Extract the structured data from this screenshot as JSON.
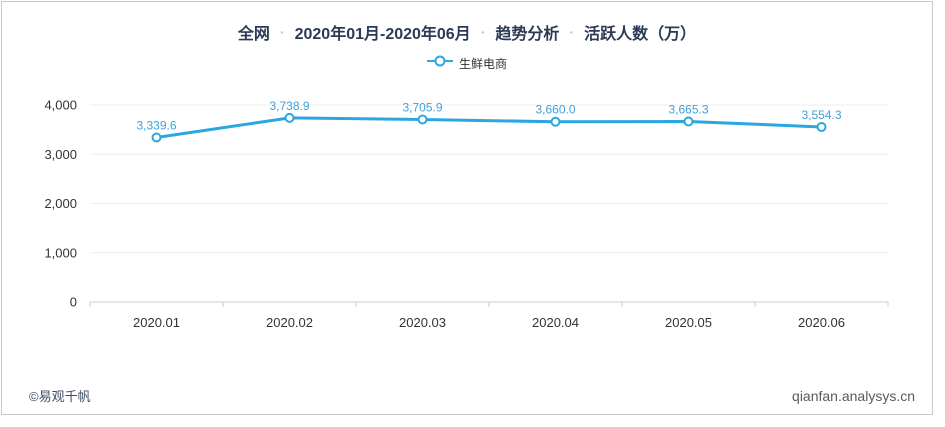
{
  "header": {
    "title_segments": [
      "全网",
      "2020年01月-2020年06月",
      "趋势分析",
      "活跃人数（万）"
    ],
    "separator": "·",
    "title_color": "#2b3a55"
  },
  "legend": {
    "label": "生鲜电商",
    "marker_shape": "line-circle",
    "marker_color": "#2ba7e0"
  },
  "chart_data": {
    "type": "line",
    "title": "全网 · 2020年01月-2020年06月 · 趋势分析 · 活跃人数（万）",
    "categories": [
      "2020.01",
      "2020.02",
      "2020.03",
      "2020.04",
      "2020.05",
      "2020.06"
    ],
    "series": [
      {
        "name": "生鲜电商",
        "values": [
          3339.6,
          3738.9,
          3705.9,
          3660.0,
          3665.3,
          3554.3
        ]
      }
    ],
    "ylim": [
      0,
      4000
    ],
    "yticks": [
      0,
      1000,
      2000,
      3000,
      4000
    ],
    "xlabel": "",
    "ylabel": "活跃人数（万）",
    "grid": true,
    "legend_position": "top",
    "line_color": "#2ba7e0",
    "marker_fill": "#ffffff",
    "label_color": "#41a0d9",
    "grid_color": "#eeeeee",
    "axis_color": "#cccccc",
    "tick_text_color": "#333333"
  },
  "footer": {
    "left": "©易观千帆",
    "right": "qianfan.analysys.cn"
  }
}
